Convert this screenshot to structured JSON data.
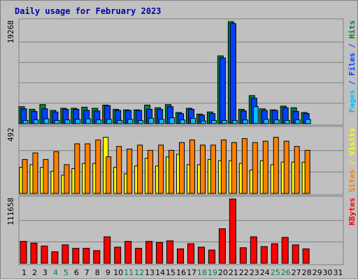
{
  "title": "Daily usage for February 2023",
  "colors": {
    "hits": "#008040",
    "files": "#0040ff",
    "pages": "#00c0ff",
    "visits": "#ffff00",
    "sites": "#ff8000",
    "kbytes": "#ff0000",
    "weekday": "#000000",
    "weekend": "#008040",
    "panel": "#c0c0c0"
  },
  "chart_data": {
    "type": "bar",
    "categories": [
      "1",
      "2",
      "3",
      "4",
      "5",
      "6",
      "7",
      "8",
      "9",
      "10",
      "11",
      "12",
      "13",
      "14",
      "15",
      "16",
      "17",
      "18",
      "19",
      "20",
      "21",
      "22",
      "23",
      "24",
      "25",
      "26",
      "27",
      "28",
      "29",
      "30",
      "31"
    ],
    "weekend_days": [
      "4",
      "5",
      "11",
      "12",
      "18",
      "19",
      "25",
      "26"
    ],
    "panels": [
      {
        "id": "top",
        "ymax_label": "19268",
        "ymax": 19268,
        "side_labels": [
          {
            "text": "Pages",
            "color_key": "pages"
          },
          {
            "text": " / ",
            "color_key": "files"
          },
          {
            "text": "Files",
            "color_key": "files"
          },
          {
            "text": " / ",
            "color_key": "files"
          },
          {
            "text": "Hits",
            "color_key": "hits"
          }
        ],
        "series": [
          {
            "name": "Hits",
            "color_key": "hits",
            "values": [
              3200,
              2700,
              3600,
              2500,
              2900,
              2900,
              3100,
              2900,
              3500,
              2700,
              2600,
              2600,
              3500,
              3000,
              3600,
              2100,
              2900,
              1800,
              2200,
              12800,
              19268,
              2700,
              5300,
              2800,
              2600,
              3300,
              3000,
              2100,
              null,
              null,
              null
            ]
          },
          {
            "name": "Files",
            "color_key": "files",
            "values": [
              2800,
              2300,
              2800,
              2200,
              2700,
              2700,
              2500,
              2400,
              3400,
              2500,
              2500,
              2500,
              2700,
              2700,
              3200,
              1900,
              2700,
              1600,
              1900,
              12400,
              18900,
              2400,
              4800,
              2500,
              2500,
              3000,
              2300,
              1900,
              null,
              null,
              null
            ]
          },
          {
            "name": "Pages",
            "color_key": "pages",
            "values": [
              600,
              700,
              900,
              600,
              700,
              800,
              900,
              700,
              800,
              600,
              800,
              600,
              1000,
              800,
              1100,
              700,
              1000,
              500,
              600,
              600,
              600,
              700,
              3200,
              800,
              700,
              600,
              700,
              800,
              null,
              null,
              null
            ]
          }
        ]
      },
      {
        "id": "mid",
        "ymax_label": "492",
        "ymax": 492,
        "side_labels": [
          {
            "text": "Sites",
            "color_key": "sites"
          },
          {
            "text": " / ",
            "color_key": "visits"
          },
          {
            "text": "Visits",
            "color_key": "visits"
          }
        ],
        "series": [
          {
            "name": "Visits",
            "color_key": "visits",
            "values": [
              200,
              220,
              200,
              170,
              140,
              190,
              230,
              230,
              430,
              200,
              150,
              210,
              270,
              210,
              280,
              300,
              220,
              220,
              260,
              250,
              250,
              230,
              180,
              250,
              220,
              240,
              240,
              240,
              null,
              null,
              null
            ]
          },
          {
            "name": "Sites",
            "color_key": "sites",
            "values": [
              260,
              310,
              260,
              320,
              220,
              380,
              380,
              410,
              280,
              360,
              340,
              370,
              330,
              370,
              330,
              390,
              410,
              370,
              370,
              410,
              390,
              420,
              390,
              400,
              430,
              400,
              360,
              330,
              null,
              null,
              null
            ]
          }
        ]
      },
      {
        "id": "bot",
        "ymax_label": "111658",
        "ymax": 111658,
        "side_labels": [
          {
            "text": "KBytes",
            "color_key": "kbytes"
          }
        ],
        "series": [
          {
            "name": "KBytes",
            "color_key": "kbytes",
            "values": [
              38000,
              35000,
              30000,
              20000,
              32000,
              26000,
              26000,
              22000,
              46000,
              28000,
              38000,
              26000,
              38000,
              36000,
              39000,
              25000,
              34000,
              28000,
              23000,
              60000,
              111658,
              27000,
              46000,
              29000,
              34000,
              45000,
              32000,
              25000,
              null,
              null,
              null
            ]
          }
        ]
      }
    ]
  }
}
